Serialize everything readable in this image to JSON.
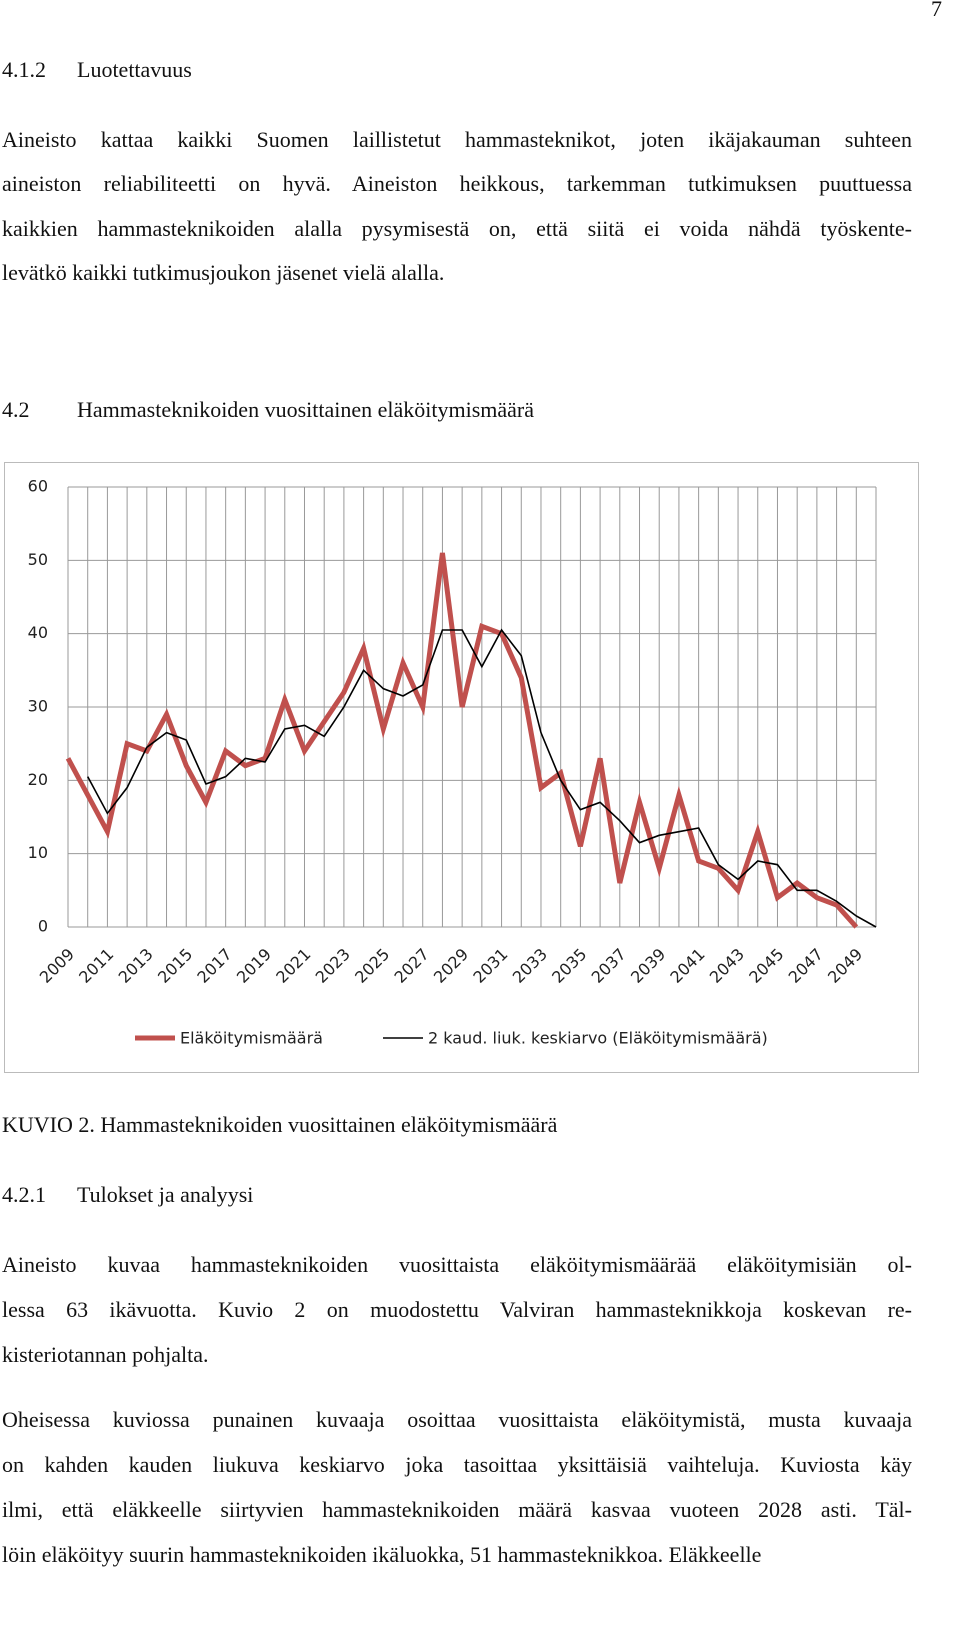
{
  "page_number": "7",
  "heading_1": {
    "number": "4.1.2",
    "title": "Luotettavuus"
  },
  "paragraph_1": [
    "Aineisto kattaa kaikki Suomen laillistetut hammasteknikot, joten ikäjakauman suhteen",
    "aineiston reliabiliteetti on hyvä. Aineiston heikkous, tarkemman tutkimuksen puuttuessa",
    "kaikkien hammasteknikoiden alalla pysymisestä on, että siitä ei voida nähdä työskente-",
    "levätkö kaikki tutkimusjoukon jäsenet vielä alalla."
  ],
  "heading_2": {
    "number": "4.2",
    "title": "Hammasteknikoiden vuosittainen eläköitymismäärä"
  },
  "chart_data": {
    "type": "line",
    "categories": [
      "2009",
      null,
      "2011",
      null,
      "2013",
      null,
      "2015",
      null,
      "2017",
      null,
      "2019",
      null,
      "2021",
      null,
      "2023",
      null,
      "2025",
      null,
      "2027",
      null,
      "2029",
      null,
      "2031",
      null,
      "2033",
      null,
      "2035",
      null,
      "2037",
      null,
      "2039",
      null,
      "2041",
      null,
      "2043",
      null,
      "2045",
      null,
      "2047",
      null,
      "2049",
      null
    ],
    "series": [
      {
        "name": "Eläköitymismäärä",
        "color": "#c0504d",
        "values": [
          23,
          18,
          13,
          25,
          24,
          29,
          22,
          17,
          24,
          22,
          23,
          31,
          24,
          28,
          32,
          38,
          27,
          36,
          30,
          51,
          30,
          41,
          40,
          34,
          19,
          21,
          11,
          23,
          6,
          17,
          8,
          18,
          9,
          8,
          5,
          13,
          4,
          6,
          4,
          3,
          0,
          null
        ]
      },
      {
        "name": "2 kaud. liuk. keskiarvo (Eläköitymismäärä)",
        "color": "#000000",
        "values": [
          null,
          20.5,
          15.5,
          19,
          24.5,
          26.5,
          25.5,
          19.5,
          20.5,
          23,
          22.5,
          27,
          27.5,
          26,
          30,
          35,
          32.5,
          31.5,
          33,
          40.5,
          40.5,
          35.5,
          40.5,
          37,
          26.5,
          20,
          16,
          17,
          14.5,
          11.5,
          12.5,
          13,
          13.5,
          8.5,
          6.5,
          9,
          8.5,
          5,
          5,
          3.5,
          1.5,
          0
        ]
      }
    ],
    "ylim": [
      0,
      60
    ],
    "yticks": [
      0,
      10,
      20,
      30,
      40,
      50,
      60
    ],
    "grid": true,
    "legend": "bottom"
  },
  "caption": "KUVIO 2. Hammasteknikoiden vuosittainen eläköitymismäärä",
  "heading_3": {
    "number": "4.2.1",
    "title": "Tulokset ja analyysi"
  },
  "paragraph_2": [
    "Aineisto kuvaa hammasteknikoiden vuosittaista eläköitymismäärää eläköitymisiän ol-",
    "lessa 63 ikävuotta. Kuvio 2 on muodostettu Valviran hammasteknikkoja koskevan re-",
    "kisteriotannan pohjalta."
  ],
  "paragraph_3": [
    "Oheisessa kuviossa punainen kuvaaja osoittaa vuosittaista eläköitymistä, musta kuvaaja",
    "on kahden kauden liukuva keskiarvo joka tasoittaa yksittäisiä vaihteluja. Kuviosta käy",
    "ilmi, että eläkkeelle siirtyvien hammasteknikoiden määrä kasvaa vuoteen 2028 asti. Täl-",
    "löin eläköityy suurin hammasteknikoiden ikäluokka, 51 hammasteknikkoa. Eläkkeelle"
  ]
}
